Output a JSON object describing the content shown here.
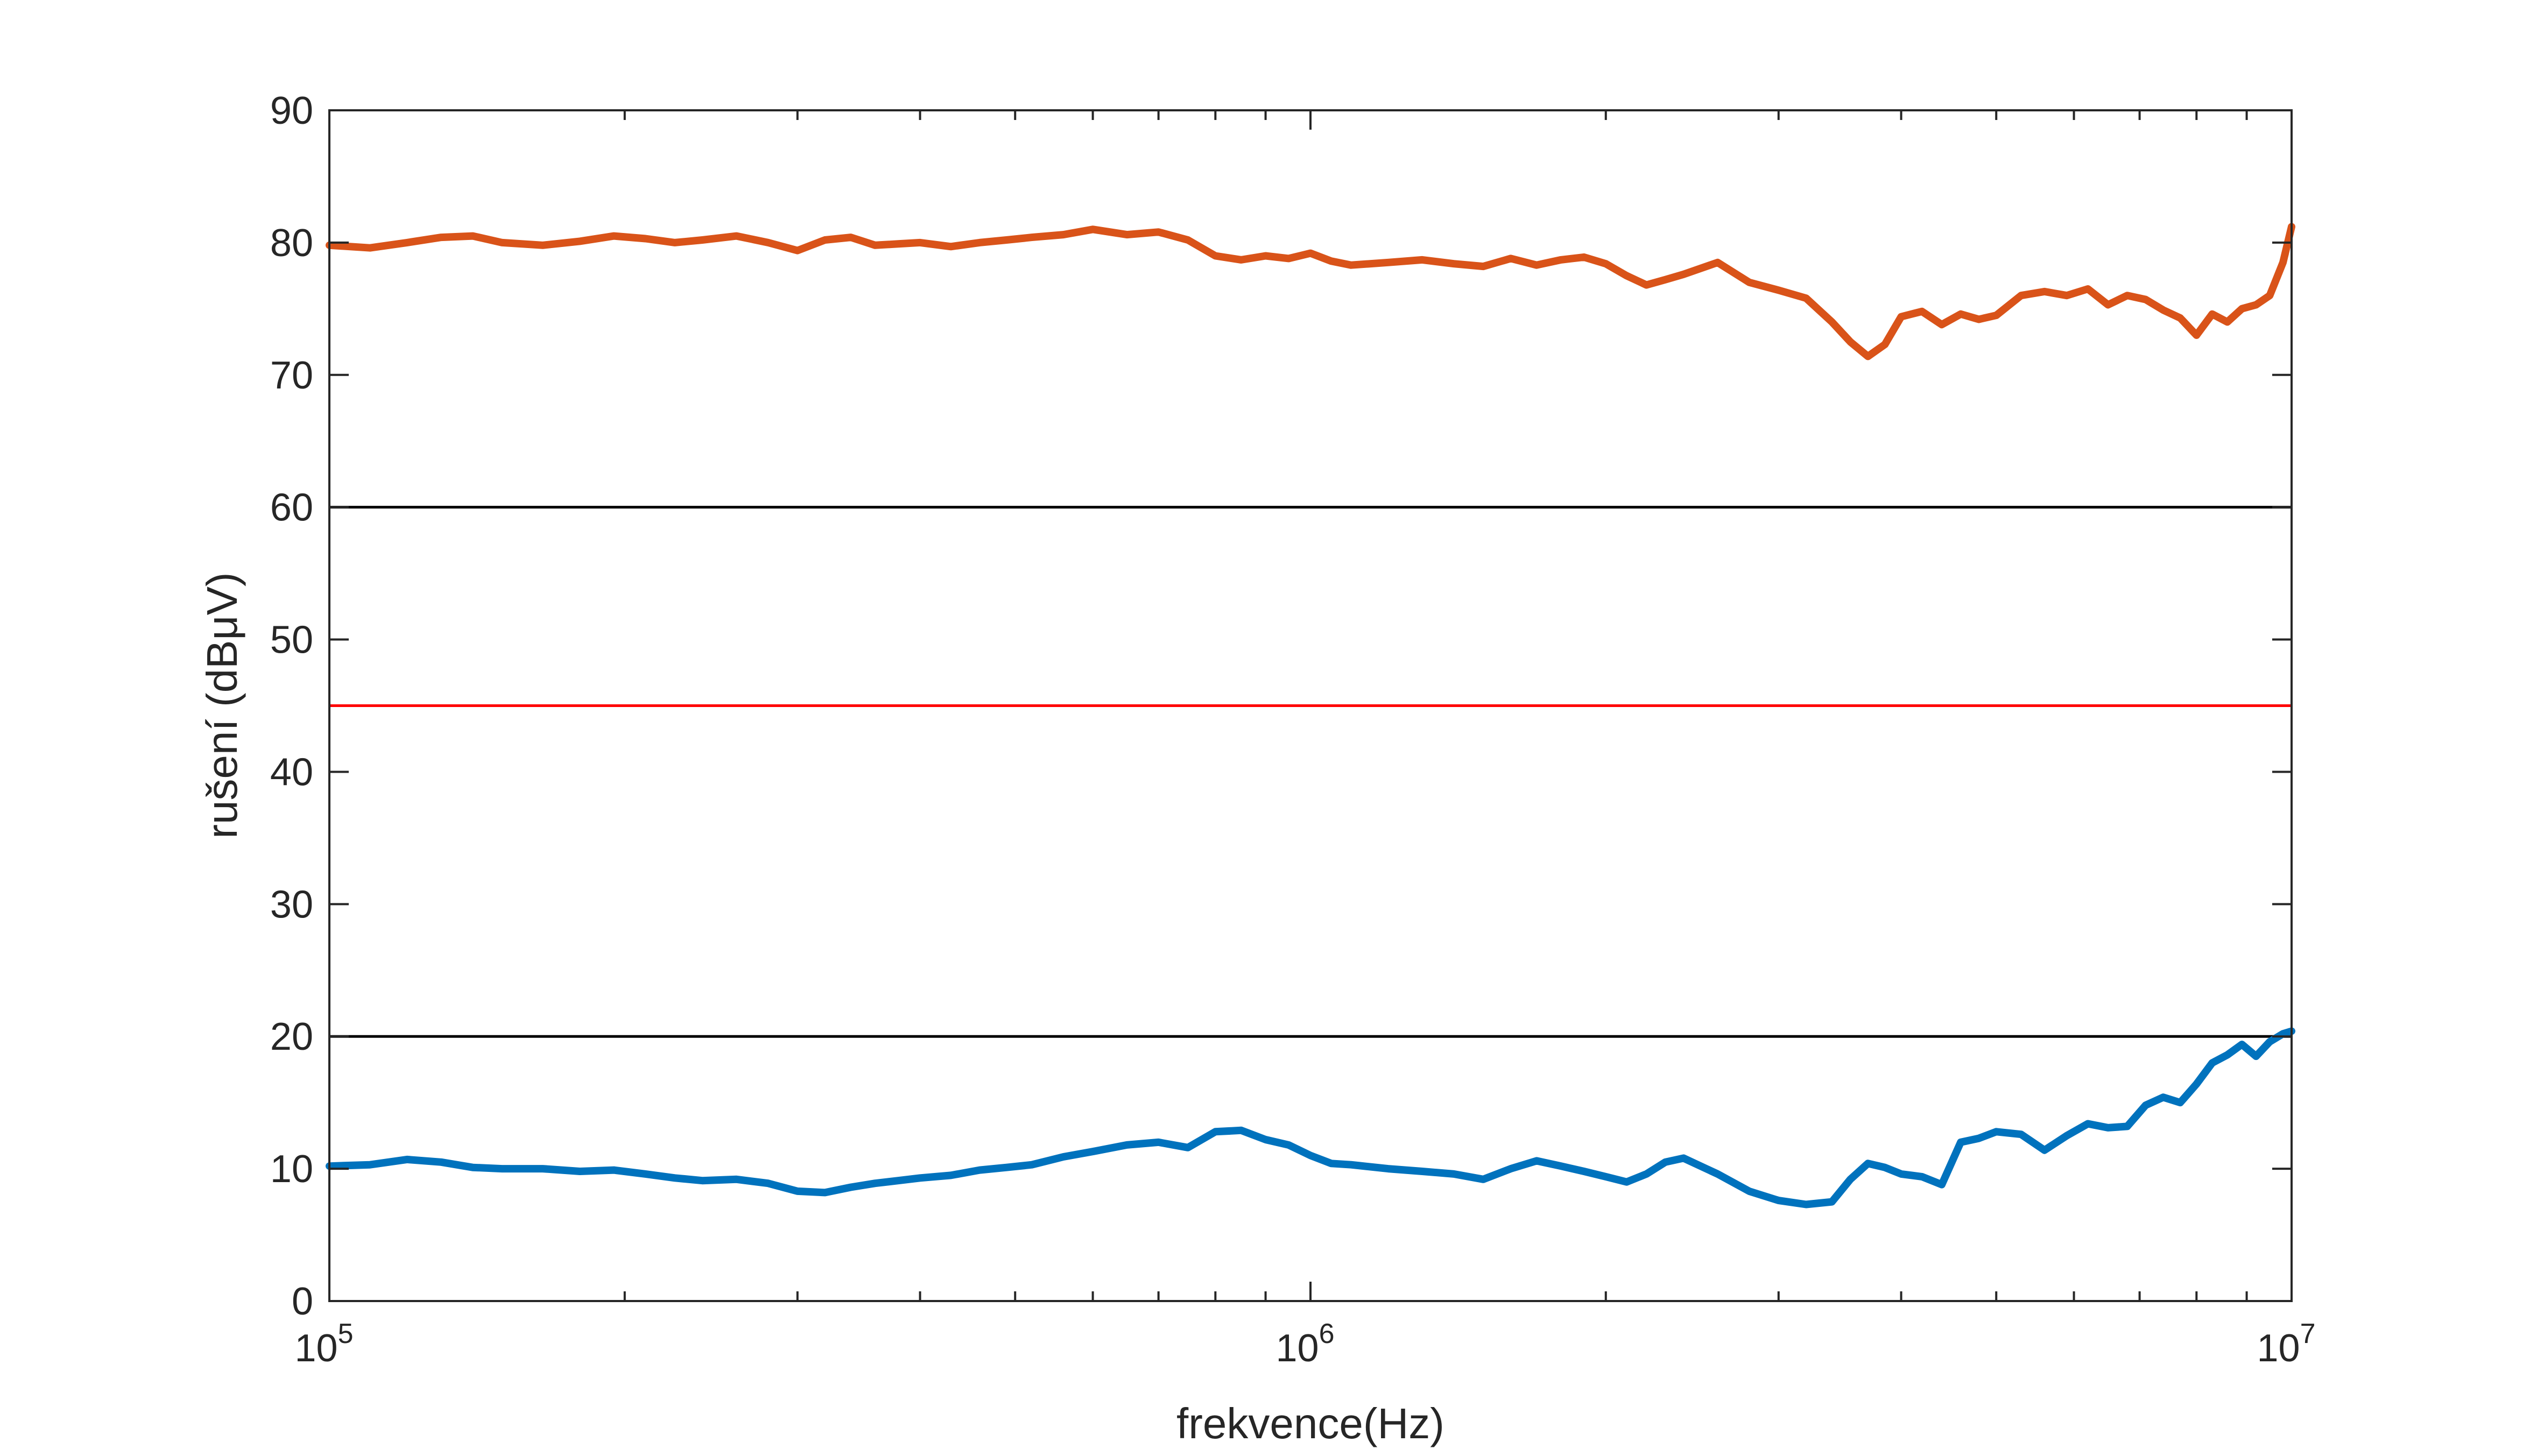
{
  "chart_data": {
    "type": "line",
    "title": "",
    "xlabel": "frekvence(Hz)",
    "ylabel": "rušení (dBμV)",
    "x_scale": "log",
    "xlim": [
      100000,
      10000000
    ],
    "ylim": [
      0,
      90
    ],
    "grid": false,
    "legend": "none",
    "x_major_ticks": [
      {
        "value": 100000,
        "base": "10",
        "exp": "5"
      },
      {
        "value": 1000000,
        "base": "10",
        "exp": "6"
      },
      {
        "value": 10000000,
        "base": "10",
        "exp": "7"
      }
    ],
    "y_ticks": [
      {
        "value": 0,
        "label": "0"
      },
      {
        "value": 10,
        "label": "10"
      },
      {
        "value": 20,
        "label": "20"
      },
      {
        "value": 30,
        "label": "30"
      },
      {
        "value": 40,
        "label": "40"
      },
      {
        "value": 50,
        "label": "50"
      },
      {
        "value": 60,
        "label": "60"
      },
      {
        "value": 70,
        "label": "70"
      },
      {
        "value": 80,
        "label": "80"
      },
      {
        "value": 90,
        "label": "90"
      }
    ],
    "reference_lines": [
      {
        "y": 60,
        "color": "#000000"
      },
      {
        "y": 45,
        "color": "#ff0000"
      },
      {
        "y": 20,
        "color": "#000000"
      }
    ],
    "series": [
      {
        "color": "#d95319",
        "x": [
          100000,
          110000,
          120000,
          130000,
          140000,
          150000,
          165000,
          180000,
          195000,
          210000,
          225000,
          240000,
          260000,
          280000,
          300000,
          320000,
          340000,
          360000,
          380000,
          400000,
          430000,
          460000,
          490000,
          520000,
          560000,
          600000,
          650000,
          700000,
          750000,
          800000,
          850000,
          900000,
          950000,
          1000000,
          1050000,
          1100000,
          1200000,
          1300000,
          1400000,
          1500000,
          1600000,
          1700000,
          1800000,
          1900000,
          2000000,
          2100000,
          2200000,
          2300000,
          2400000,
          2600000,
          2800000,
          3000000,
          3200000,
          3400000,
          3550000,
          3700000,
          3850000,
          4000000,
          4200000,
          4400000,
          4600000,
          4800000,
          5000000,
          5300000,
          5600000,
          5900000,
          6200000,
          6500000,
          6800000,
          7100000,
          7400000,
          7700000,
          8000000,
          8300000,
          8600000,
          8900000,
          9200000,
          9500000,
          9800000,
          10000000
        ],
        "values": [
          79.8,
          79.6,
          80.0,
          80.4,
          80.5,
          80.0,
          79.8,
          80.1,
          80.5,
          80.3,
          80.0,
          80.2,
          80.5,
          80.0,
          79.4,
          80.2,
          80.4,
          79.8,
          79.9,
          80.0,
          79.7,
          80.0,
          80.2,
          80.4,
          80.6,
          81.0,
          80.6,
          80.8,
          80.2,
          79.0,
          78.7,
          79.0,
          78.8,
          79.2,
          78.6,
          78.3,
          78.5,
          78.7,
          78.4,
          78.2,
          78.8,
          78.3,
          78.7,
          78.9,
          78.4,
          77.5,
          76.8,
          77.2,
          77.6,
          78.5,
          77.0,
          76.4,
          75.8,
          74.0,
          72.5,
          71.4,
          72.3,
          74.4,
          74.8,
          73.8,
          74.6,
          74.2,
          74.5,
          76.0,
          76.3,
          76.0,
          76.5,
          75.3,
          76.0,
          75.7,
          74.9,
          74.3,
          73.0,
          74.6,
          74.0,
          75.0,
          75.3,
          76.0,
          78.5,
          81.2
        ]
      },
      {
        "color": "#0072bd",
        "x": [
          100000,
          110000,
          120000,
          130000,
          140000,
          150000,
          165000,
          180000,
          195000,
          210000,
          225000,
          240000,
          260000,
          280000,
          300000,
          320000,
          340000,
          360000,
          380000,
          400000,
          430000,
          460000,
          490000,
          520000,
          560000,
          600000,
          650000,
          700000,
          750000,
          800000,
          850000,
          900000,
          950000,
          1000000,
          1050000,
          1100000,
          1200000,
          1300000,
          1400000,
          1500000,
          1600000,
          1700000,
          1800000,
          1900000,
          2000000,
          2100000,
          2200000,
          2300000,
          2400000,
          2600000,
          2800000,
          3000000,
          3200000,
          3400000,
          3550000,
          3700000,
          3850000,
          4000000,
          4200000,
          4400000,
          4600000,
          4800000,
          5000000,
          5300000,
          5600000,
          5900000,
          6200000,
          6500000,
          6800000,
          7100000,
          7400000,
          7700000,
          8000000,
          8300000,
          8600000,
          8900000,
          9200000,
          9500000,
          9800000,
          10000000
        ],
        "values": [
          10.2,
          10.3,
          10.7,
          10.5,
          10.1,
          10.0,
          10.0,
          9.8,
          9.9,
          9.6,
          9.3,
          9.1,
          9.2,
          8.9,
          8.3,
          8.2,
          8.6,
          8.9,
          9.1,
          9.3,
          9.5,
          9.9,
          10.1,
          10.3,
          10.9,
          11.3,
          11.8,
          12.0,
          11.6,
          12.8,
          12.9,
          12.2,
          11.8,
          11.0,
          10.4,
          10.3,
          10.0,
          9.8,
          9.6,
          9.2,
          10.0,
          10.6,
          10.2,
          9.8,
          9.4,
          9.0,
          9.6,
          10.5,
          10.8,
          9.6,
          8.3,
          7.6,
          7.3,
          7.5,
          9.2,
          10.4,
          10.1,
          9.6,
          9.4,
          8.8,
          12.0,
          12.3,
          12.8,
          12.6,
          11.4,
          12.5,
          13.4,
          13.1,
          13.2,
          14.8,
          15.4,
          15.0,
          16.4,
          18.0,
          18.6,
          19.4,
          18.5,
          19.6,
          20.2,
          20.4
        ]
      }
    ]
  }
}
